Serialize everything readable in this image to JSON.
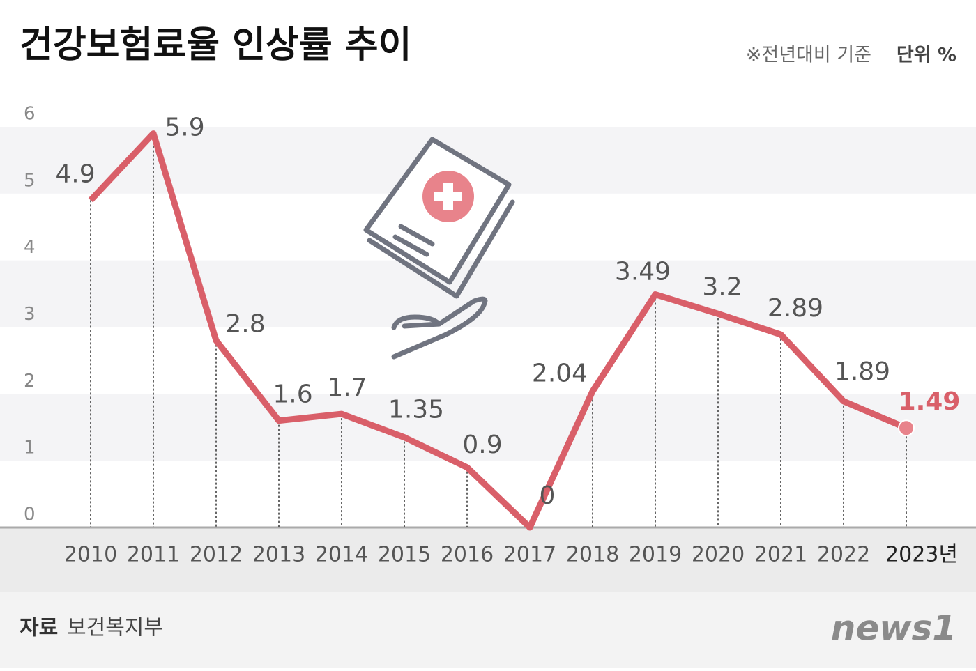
{
  "chart_data": {
    "type": "line",
    "title": "건강보험료율 인상률 추이",
    "note": "※전년대비 기준",
    "unit": "단위 %",
    "source_label": "자료",
    "source": "보건복지부",
    "brand": "news1",
    "categories": [
      "2010",
      "2011",
      "2012",
      "2013",
      "2014",
      "2015",
      "2016",
      "2017",
      "2018",
      "2019",
      "2020",
      "2021",
      "2022",
      "2023년"
    ],
    "values": [
      4.9,
      5.9,
      2.8,
      1.6,
      1.7,
      1.35,
      0.9,
      0,
      2.04,
      3.49,
      3.2,
      2.89,
      1.89,
      1.49
    ],
    "color": "#d95f69",
    "highlight_color": "#e8838b",
    "ylim": [
      0,
      6
    ],
    "yticks": [
      0,
      1,
      2,
      3,
      4,
      5,
      6
    ],
    "grid": true
  }
}
